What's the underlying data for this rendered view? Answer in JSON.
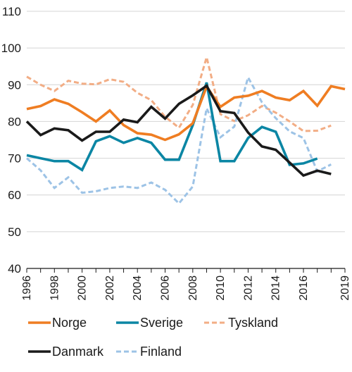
{
  "chart_data": {
    "type": "line",
    "title": "",
    "xlabel": "",
    "ylabel": "",
    "ylim": [
      40,
      110
    ],
    "xlim": [
      1996,
      2019
    ],
    "yticks": [
      40,
      50,
      60,
      70,
      80,
      90,
      100,
      110
    ],
    "xticks": [
      1996,
      1998,
      2000,
      2002,
      2004,
      2006,
      2008,
      2010,
      2012,
      2014,
      2016,
      2019
    ],
    "grid": "horizontal",
    "legend_position": "bottom",
    "x": [
      1996,
      1997,
      1998,
      1999,
      2000,
      2001,
      2002,
      2003,
      2004,
      2005,
      2006,
      2007,
      2008,
      2009,
      2010,
      2011,
      2012,
      2013,
      2014,
      2015,
      2016,
      2017,
      2018,
      2019
    ],
    "series": [
      {
        "name": "Norge",
        "color": "#ef7d22",
        "style": "solid",
        "values": [
          83.4,
          84.2,
          86.0,
          84.8,
          82.5,
          80.0,
          83.0,
          79.0,
          76.8,
          76.4,
          75.0,
          76.5,
          79.5,
          89.5,
          84.0,
          86.5,
          87.0,
          88.3,
          86.5,
          85.8,
          88.3,
          84.3,
          89.6,
          88.8
        ]
      },
      {
        "name": "Sverige",
        "color": "#0b86a4",
        "style": "solid",
        "values": [
          70.8,
          70.0,
          69.2,
          69.2,
          66.8,
          74.6,
          76.0,
          74.2,
          75.5,
          74.2,
          69.6,
          69.6,
          79.0,
          90.6,
          69.2,
          69.2,
          75.5,
          78.5,
          77.2,
          68.2,
          68.6,
          69.9,
          null,
          null
        ]
      },
      {
        "name": "Tyskland",
        "color": "#f2ad85",
        "style": "dashed",
        "values": [
          92.2,
          90.0,
          88.3,
          91.1,
          90.3,
          90.1,
          91.5,
          90.8,
          87.8,
          85.8,
          81.3,
          78.3,
          84.5,
          97.5,
          82.0,
          80.1,
          81.7,
          84.2,
          82.4,
          80.0,
          77.4,
          77.5,
          78.9,
          null
        ]
      },
      {
        "name": "Danmark",
        "color": "#1a1a1a",
        "style": "solid",
        "values": [
          80.0,
          76.3,
          78.1,
          77.6,
          74.8,
          77.2,
          77.2,
          80.5,
          79.8,
          84.0,
          80.8,
          84.8,
          87.1,
          89.7,
          82.8,
          82.3,
          77.0,
          73.2,
          72.3,
          68.8,
          65.3,
          66.6,
          65.7,
          null
        ]
      },
      {
        "name": "Finland",
        "color": "#9dc3e6",
        "style": "dashed",
        "values": [
          70.0,
          66.7,
          61.9,
          64.8,
          60.6,
          61.0,
          61.9,
          62.3,
          61.9,
          63.4,
          61.4,
          57.7,
          62.3,
          83.6,
          75.7,
          78.6,
          92.0,
          85.2,
          80.9,
          77.3,
          75.5,
          66.4,
          68.3,
          null
        ]
      }
    ]
  }
}
